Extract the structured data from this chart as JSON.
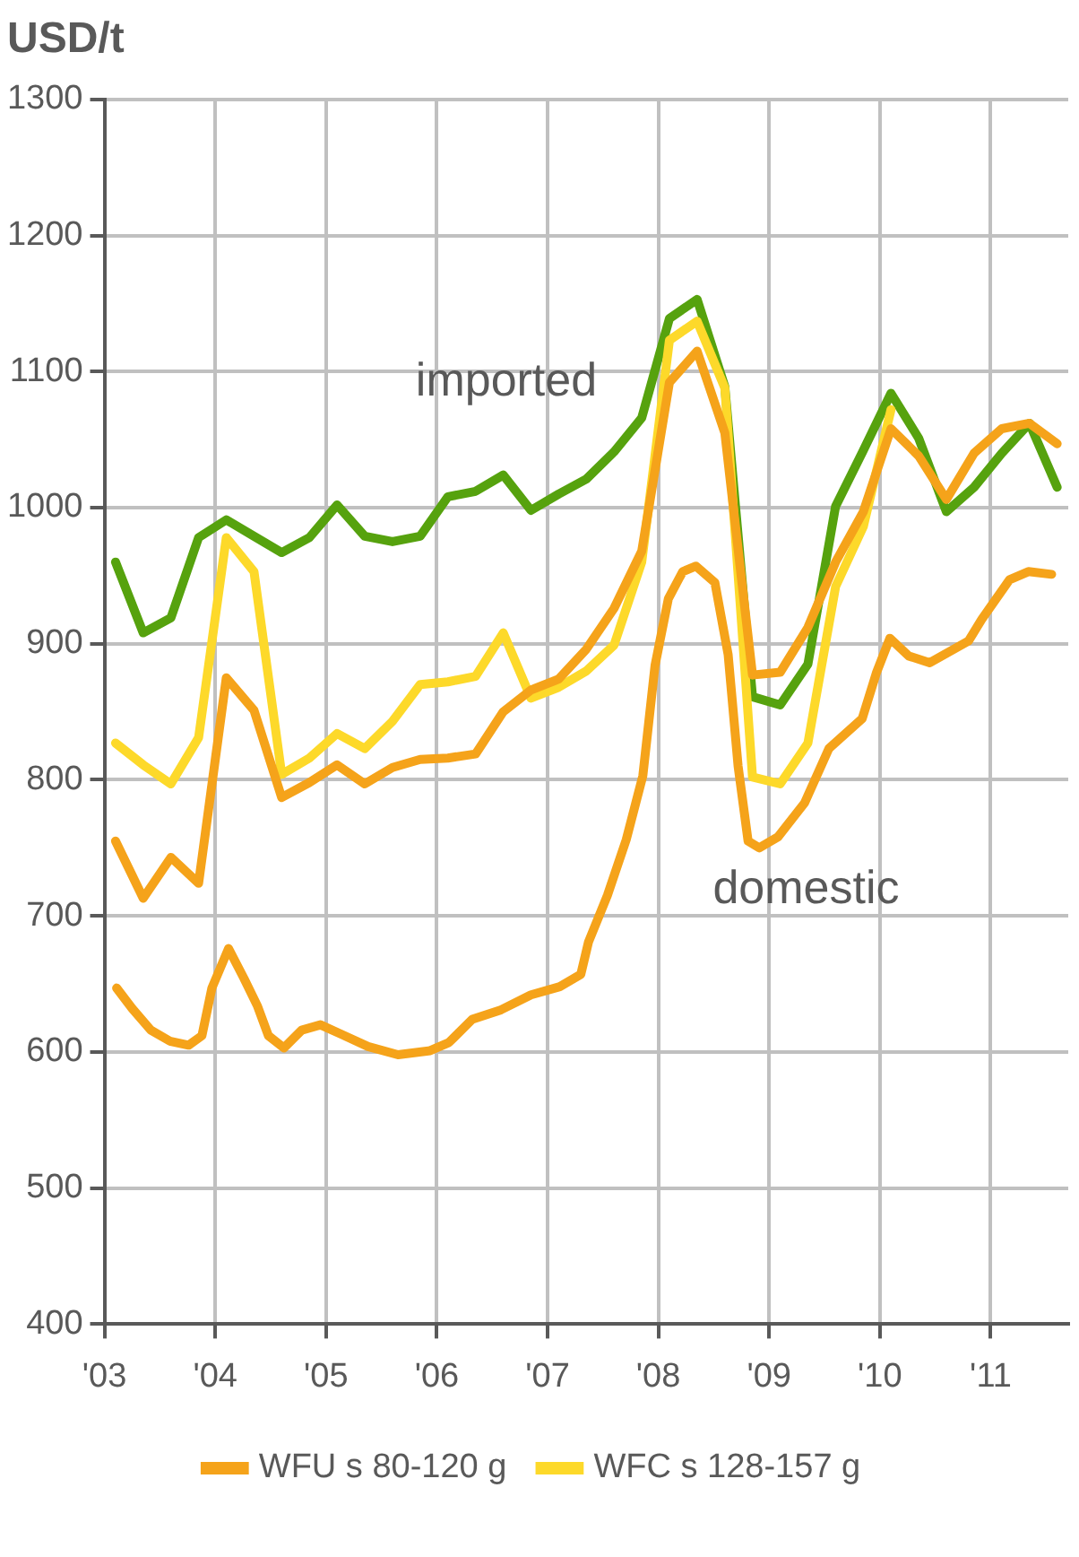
{
  "chart_data": {
    "type": "line",
    "ylabel": "USD/t",
    "xlim": [
      2003,
      2011.7
    ],
    "xticks": [
      {
        "value": 2003,
        "label": "'03"
      },
      {
        "value": 2004,
        "label": "'04"
      },
      {
        "value": 2005,
        "label": "'05"
      },
      {
        "value": 2006,
        "label": "'06"
      },
      {
        "value": 2007,
        "label": "'07"
      },
      {
        "value": 2008,
        "label": "'08"
      },
      {
        "value": 2009,
        "label": "'09"
      },
      {
        "value": 2010,
        "label": "'10"
      },
      {
        "value": 2011,
        "label": "'11"
      }
    ],
    "ylim": [
      400,
      1300
    ],
    "yticks": [
      400,
      500,
      600,
      700,
      800,
      900,
      1000,
      1100,
      1200,
      1300
    ],
    "grid": true,
    "legend": "bottom",
    "marker": "none",
    "line_style": "solid",
    "x": [
      2003.1,
      2003.35,
      2003.6,
      2003.85,
      2004.1,
      2004.35,
      2004.6,
      2004.85,
      2005.1,
      2005.35,
      2005.6,
      2005.85,
      2006.1,
      2006.35,
      2006.6,
      2006.85,
      2007.1,
      2007.35,
      2007.6,
      2007.85,
      2008.1,
      2008.35,
      2008.6,
      2008.85,
      2009.1,
      2009.35,
      2009.6,
      2009.85,
      2010.1,
      2010.35,
      2010.6,
      2010.85,
      2011.1,
      2011.35,
      2011.6
    ],
    "series": [
      {
        "color": "#f5a31a",
        "x": [
          2003.11,
          2003.25,
          2003.42,
          2003.59,
          2003.76,
          2003.88,
          2003.97,
          2004.12,
          2004.26,
          2004.38,
          2004.48,
          2004.62,
          2004.78,
          2004.95,
          2005.14,
          2005.38,
          2005.65,
          2005.94,
          2006.11,
          2006.32,
          2006.58,
          2006.85,
          2007.11,
          2007.3,
          2007.37,
          2007.54,
          2007.71,
          2007.86,
          2007.97,
          2008.09,
          2008.22,
          2008.34,
          2008.51,
          2008.63,
          2008.72,
          2008.81,
          2008.91,
          2009.08,
          2009.32,
          2009.54,
          2009.84,
          2009.97,
          2010.09,
          2010.26,
          2010.45,
          2010.8,
          2010.92,
          2011.17,
          2011.34,
          2011.55
        ],
        "values": [
          647,
          632,
          616,
          608,
          605,
          612,
          647,
          676,
          654,
          634,
          612,
          603,
          616,
          620,
          613,
          604,
          598,
          601,
          607,
          624,
          631,
          642,
          648,
          657,
          681,
          715,
          756,
          803,
          884,
          933,
          953,
          957,
          945,
          892,
          810,
          755,
          750,
          758,
          783,
          823,
          845,
          879,
          904,
          891,
          886,
          902,
          918,
          947,
          953,
          951
        ]
      },
      {
        "name": "WFU s 80-120 g",
        "color": "#f5a31a",
        "values": [
          755,
          713,
          743,
          724,
          875,
          851,
          787,
          798,
          811,
          797,
          809,
          815,
          816,
          819,
          850,
          866,
          874,
          896,
          926,
          968,
          1092,
          1115,
          1055,
          877,
          879,
          912,
          960,
          997,
          1058,
          1038,
          1006,
          1040,
          1058,
          1062,
          1047
        ]
      },
      {
        "name": "WFC s 128-157 g",
        "color": "#fdd92a",
        "values": [
          827,
          811,
          797,
          831,
          978,
          953,
          804,
          816,
          834,
          823,
          843,
          870,
          872,
          876,
          908,
          860,
          868,
          880,
          899,
          960,
          1123,
          1137,
          1088,
          802,
          797,
          827,
          942,
          986,
          1072,
          null,
          null,
          null,
          null,
          null,
          null
        ]
      },
      {
        "color": "#56a20e",
        "values": [
          960,
          908,
          919,
          978,
          991,
          979,
          967,
          978,
          1002,
          979,
          975,
          979,
          1008,
          1012,
          1024,
          998,
          1010,
          1021,
          1041,
          1066,
          1139,
          1153,
          1089,
          861,
          855,
          885,
          1001,
          1042,
          1084,
          1051,
          997,
          1015,
          1040,
          1062,
          1015
        ]
      }
    ],
    "annotations": [
      "imported",
      "domestic"
    ]
  }
}
